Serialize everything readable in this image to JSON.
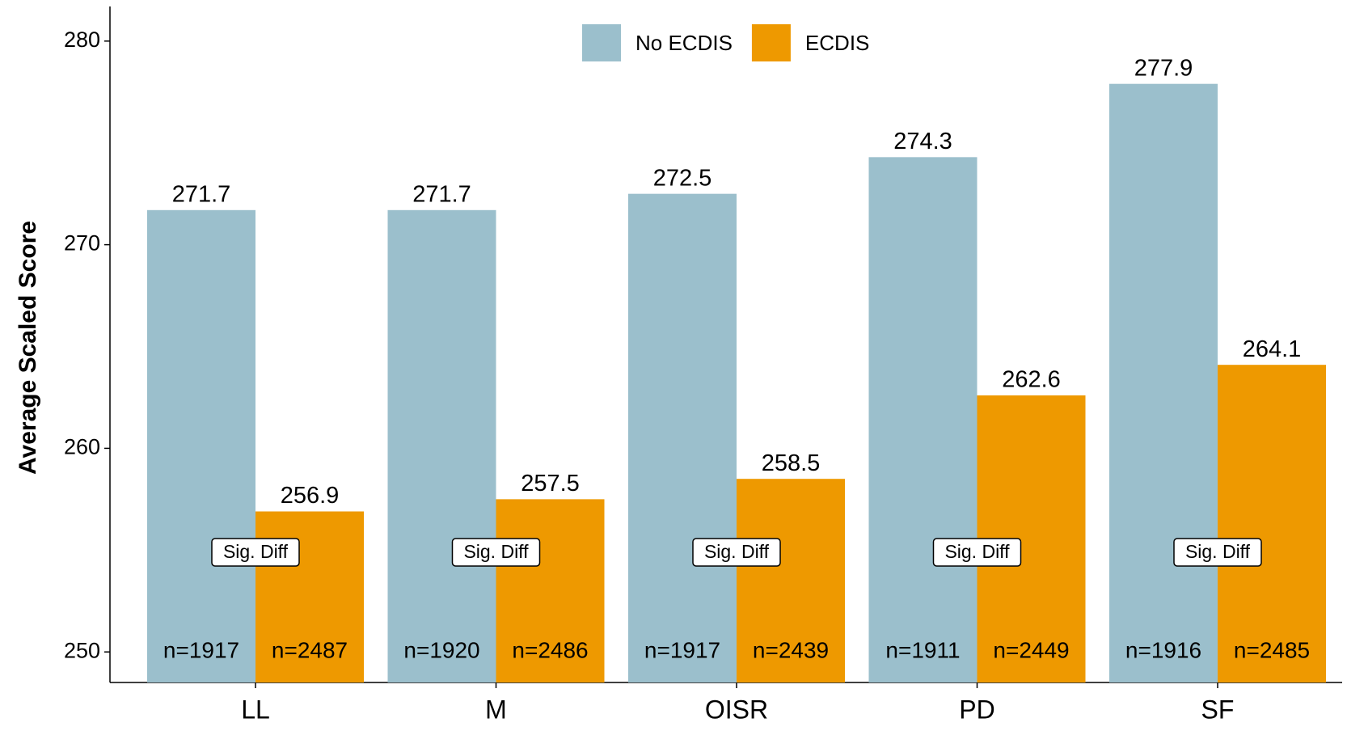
{
  "chart_data": {
    "type": "bar",
    "ylabel": "Average Scaled Score",
    "categories": [
      "LL",
      "M",
      "OISR",
      "PD",
      "SF"
    ],
    "series": [
      {
        "name": "No ECDIS",
        "color": "#9bbfcc",
        "values": [
          271.7,
          271.7,
          272.5,
          274.3,
          277.9
        ],
        "sample_labels": [
          "n=1917",
          "n=1920",
          "n=1917",
          "n=1911",
          "n=1916"
        ]
      },
      {
        "name": "ECDIS",
        "color": "#ee9900",
        "values": [
          256.9,
          257.5,
          258.5,
          262.6,
          264.1
        ],
        "sample_labels": [
          "n=2487",
          "n=2486",
          "n=2439",
          "n=2449",
          "n=2485"
        ]
      }
    ],
    "annotations": [
      "Sig. Diff",
      "Sig. Diff",
      "Sig. Diff",
      "Sig. Diff",
      "Sig. Diff"
    ],
    "ylim": [
      248.5,
      281.7
    ],
    "yticks": [
      250,
      260,
      270,
      280
    ],
    "grid": false,
    "legend": "top"
  }
}
